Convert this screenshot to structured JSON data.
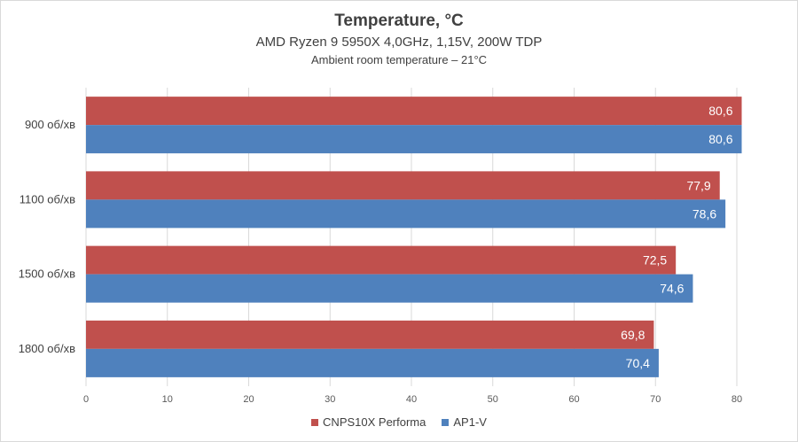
{
  "chart_data": {
    "type": "bar",
    "orientation": "horizontal",
    "title": "Temperature, °C",
    "subtitle": "AMD Ryzen 9 5950X 4,0GHz, 1,15V, 200W TDP",
    "subtitle2": "Ambient room temperature – 21°C",
    "categories": [
      "900 об/хв",
      "1100 об/хв",
      "1500 об/хв",
      "1800 об/хв"
    ],
    "series": [
      {
        "name": "CNPS10X Performa",
        "color": "#c0504d",
        "values": [
          80.6,
          77.9,
          72.5,
          69.8
        ],
        "labels": [
          "80,6",
          "77,9",
          "72,5",
          "69,8"
        ]
      },
      {
        "name": "AP1-V",
        "color": "#4f81bd",
        "values": [
          80.6,
          78.6,
          74.6,
          70.4
        ],
        "labels": [
          "80,6",
          "78,6",
          "74,6",
          "70,4"
        ]
      }
    ],
    "xlim": [
      0,
      80
    ],
    "xticks": [
      "0",
      "10",
      "20",
      "30",
      "40",
      "50",
      "60",
      "70",
      "80"
    ],
    "grid": true,
    "legend_position": "bottom"
  }
}
